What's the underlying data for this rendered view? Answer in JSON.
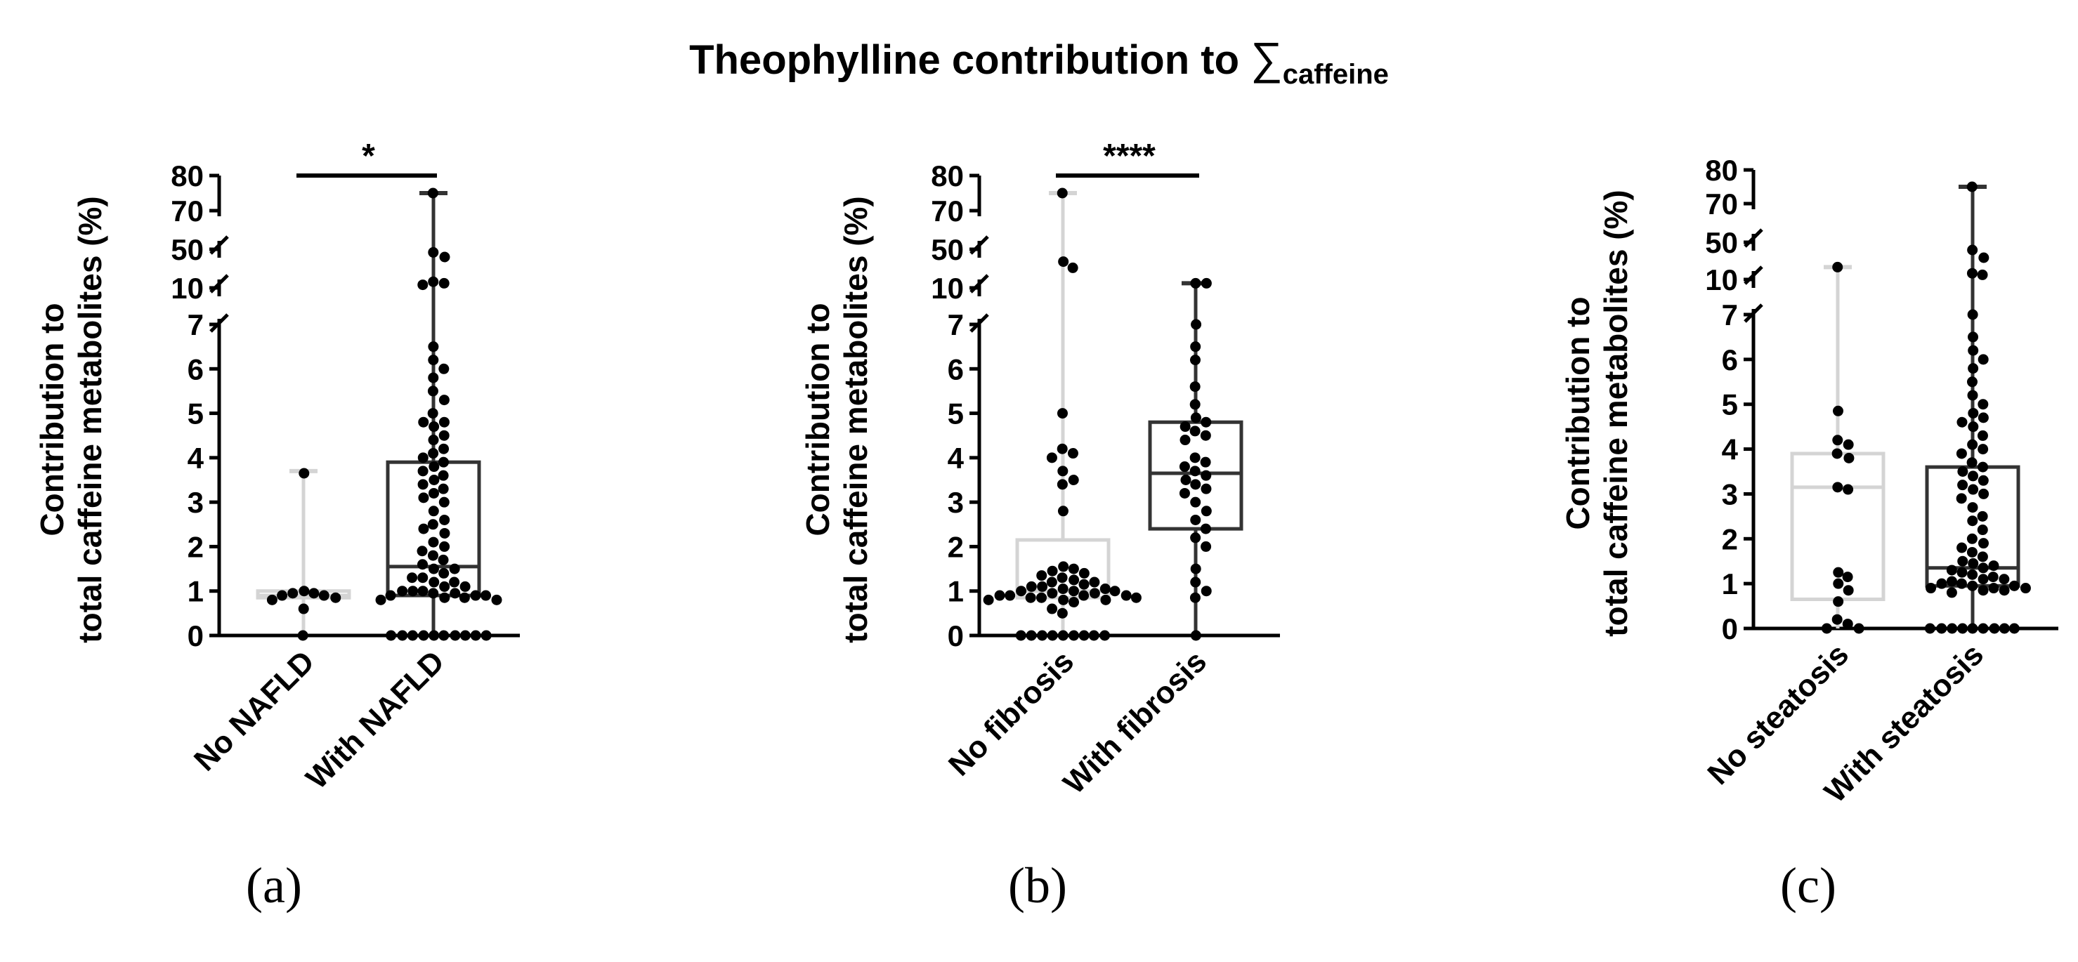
{
  "figure": {
    "title_main": "Theophylline contribution to ",
    "title_symbol": "∑",
    "title_subscript": "caffeine"
  },
  "colors": {
    "group_light": "#d4d4d4",
    "group_dark": "#333333",
    "points": "#000000",
    "axis": "#000000"
  },
  "chart_data": [
    {
      "type": "box",
      "panel_label": "(a)",
      "ylabel_line1": "Contribution to",
      "ylabel_line2": "total caffeine metabolites (%)",
      "categories": [
        "No NAFLD",
        "With NAFLD"
      ],
      "y_axis": {
        "segments": [
          [
            0,
            7
          ],
          [
            10,
            10
          ],
          [
            50,
            50
          ],
          [
            70,
            80
          ]
        ],
        "ticks": [
          0,
          1,
          2,
          3,
          4,
          5,
          6,
          7,
          10,
          50,
          70,
          80
        ],
        "broken": true
      },
      "significance": {
        "label": "*",
        "between": [
          0,
          1
        ]
      },
      "groups": [
        {
          "name": "No NAFLD",
          "color": "light",
          "whisker_low": 0,
          "q1": 0.85,
          "median": 0.9,
          "q3": 1.0,
          "whisker_high": 3.7,
          "points": [
            3.65,
            1.0,
            0.95,
            0.95,
            0.9,
            0.9,
            0.85,
            0.8,
            0.6,
            0.0
          ]
        },
        {
          "name": "With NAFLD",
          "color": "dark",
          "whisker_low": 0,
          "q1": 0.9,
          "median": 1.55,
          "q3": 3.9,
          "whisker_high": 75,
          "points": [
            75,
            48,
            45,
            14,
            13,
            12,
            6.5,
            6.2,
            6.0,
            5.8,
            5.5,
            5.3,
            5.0,
            4.8,
            4.8,
            4.7,
            4.5,
            4.4,
            4.2,
            4.1,
            4.0,
            3.9,
            3.8,
            3.7,
            3.6,
            3.5,
            3.4,
            3.3,
            3.2,
            3.1,
            3.0,
            2.8,
            2.6,
            2.5,
            2.4,
            2.3,
            2.1,
            2.0,
            1.9,
            1.8,
            1.7,
            1.6,
            1.5,
            1.5,
            1.4,
            1.3,
            1.3,
            1.2,
            1.2,
            1.1,
            1.1,
            1.0,
            1.0,
            1.0,
            0.95,
            0.95,
            0.9,
            0.9,
            0.9,
            0.85,
            0.85,
            0.8,
            0.8,
            0.0,
            0.0,
            0.0,
            0.0,
            0.0,
            0.0,
            0.0,
            0.0,
            0.0,
            0.0
          ]
        }
      ]
    },
    {
      "type": "box",
      "panel_label": "(b)",
      "ylabel_line1": "Contribution to",
      "ylabel_line2": "total caffeine metabolites (%)",
      "categories": [
        "No fibrosis",
        "With fibrosis"
      ],
      "y_axis": {
        "segments": [
          [
            0,
            7
          ],
          [
            10,
            10
          ],
          [
            50,
            50
          ],
          [
            70,
            80
          ]
        ],
        "ticks": [
          0,
          1,
          2,
          3,
          4,
          5,
          6,
          7,
          10,
          50,
          70,
          80
        ],
        "broken": true
      },
      "significance": {
        "label": "****",
        "between": [
          0,
          1
        ]
      },
      "groups": [
        {
          "name": "No fibrosis",
          "color": "light",
          "whisker_low": 0,
          "q1": 0.85,
          "median": 1.0,
          "q3": 2.15,
          "whisker_high": 75,
          "points": [
            75,
            42,
            38,
            5.0,
            4.2,
            4.1,
            4.0,
            3.7,
            3.5,
            3.4,
            2.8,
            1.55,
            1.5,
            1.45,
            1.4,
            1.35,
            1.3,
            1.25,
            1.2,
            1.2,
            1.15,
            1.1,
            1.1,
            1.05,
            1.05,
            1.0,
            1.0,
            1.0,
            0.95,
            0.95,
            0.9,
            0.9,
            0.9,
            0.9,
            0.85,
            0.85,
            0.85,
            0.8,
            0.8,
            0.8,
            0.75,
            0.6,
            0.5,
            0.0,
            0.0,
            0.0,
            0.0,
            0.0,
            0.0,
            0.0,
            0.0,
            0.0
          ]
        },
        {
          "name": "With fibrosis",
          "color": "dark",
          "whisker_low": 0,
          "q1": 2.4,
          "median": 3.65,
          "q3": 4.8,
          "whisker_high": 13,
          "points": [
            13,
            13,
            7.0,
            6.5,
            6.2,
            5.6,
            5.2,
            4.9,
            4.8,
            4.7,
            4.6,
            4.5,
            4.4,
            4.0,
            3.9,
            3.8,
            3.7,
            3.6,
            3.5,
            3.4,
            3.3,
            3.2,
            3.0,
            2.8,
            2.6,
            2.4,
            2.2,
            2.0,
            1.5,
            1.2,
            1.0,
            0.85,
            0.0
          ]
        }
      ]
    },
    {
      "type": "box",
      "panel_label": "(c)",
      "ylabel_line1": "Contribution to",
      "ylabel_line2": "total caffeine metabolites (%)",
      "categories": [
        "No steatosis",
        "With steatosis"
      ],
      "y_axis": {
        "segments": [
          [
            0,
            7
          ],
          [
            10,
            10
          ],
          [
            50,
            50
          ],
          [
            70,
            80
          ]
        ],
        "ticks": [
          0,
          1,
          2,
          3,
          4,
          5,
          6,
          7,
          10,
          50,
          70,
          80
        ],
        "broken": true
      },
      "significance": null,
      "groups": [
        {
          "name": "No steatosis",
          "color": "light",
          "whisker_low": 0,
          "q1": 0.65,
          "median": 3.15,
          "q3": 3.9,
          "whisker_high": 18,
          "points": [
            18,
            4.85,
            4.2,
            4.1,
            3.9,
            3.8,
            3.15,
            3.1,
            1.25,
            1.15,
            1.0,
            0.85,
            0.6,
            0.2,
            0.1,
            0.0,
            0.0
          ]
        },
        {
          "name": "With steatosis",
          "color": "dark",
          "whisker_low": 0,
          "q1": 0.95,
          "median": 1.35,
          "q3": 3.6,
          "whisker_high": 75,
          "points": [
            75,
            45,
            40,
            14,
            13,
            7.0,
            6.5,
            6.2,
            6.0,
            5.8,
            5.5,
            5.2,
            5.0,
            4.8,
            4.7,
            4.6,
            4.5,
            4.3,
            4.1,
            4.0,
            3.9,
            3.7,
            3.6,
            3.5,
            3.4,
            3.3,
            3.2,
            3.1,
            3.0,
            2.9,
            2.7,
            2.5,
            2.4,
            2.2,
            2.0,
            1.9,
            1.8,
            1.7,
            1.6,
            1.5,
            1.45,
            1.4,
            1.35,
            1.3,
            1.25,
            1.2,
            1.15,
            1.1,
            1.1,
            1.05,
            1.0,
            1.0,
            0.95,
            0.95,
            0.9,
            0.9,
            0.9,
            0.85,
            0.85,
            0.8,
            0.0,
            0.0,
            0.0,
            0.0,
            0.0,
            0.0,
            0.0,
            0.0,
            0.0
          ]
        }
      ]
    }
  ]
}
